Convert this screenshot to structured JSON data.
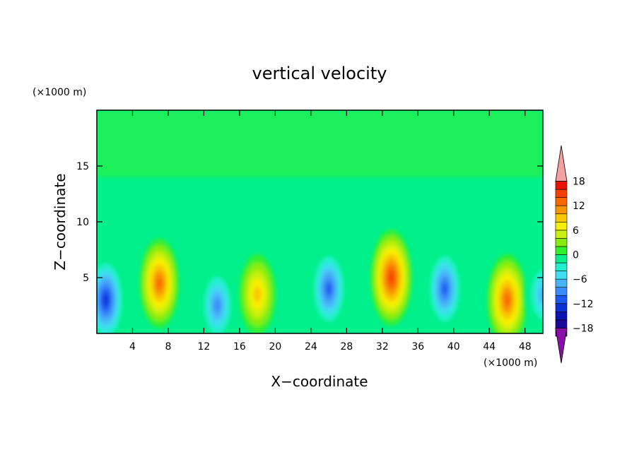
{
  "chart_data": {
    "type": "heatmap",
    "title": "vertical velocity",
    "xlabel": "X−coordinate",
    "ylabel": "Z−coordinate",
    "x_unit": "(×1000 m)",
    "y_unit": "(×1000 m)",
    "xlim": [
      0,
      50
    ],
    "ylim": [
      0,
      20
    ],
    "x_ticks": [
      4,
      8,
      12,
      16,
      20,
      24,
      28,
      32,
      36,
      40,
      44,
      48
    ],
    "y_ticks": [
      5,
      10,
      15
    ],
    "colorbar": {
      "levels": [
        -20,
        -18,
        -16,
        -14,
        -12,
        -10,
        -8,
        -6,
        -4,
        -2,
        0,
        2,
        4,
        6,
        8,
        10,
        12,
        14,
        16,
        18,
        20
      ],
      "tick_labels": [
        "18",
        "12",
        "6",
        "0",
        "−6",
        "−12",
        "−18"
      ],
      "tick_values": [
        18,
        12,
        6,
        0,
        -6,
        -12,
        -18
      ],
      "colors": [
        "#8a0fa8",
        "#4a0aa0",
        "#1a0a9a",
        "#0a14b0",
        "#0a30d8",
        "#1a58f0",
        "#3a8cf8",
        "#46b4f8",
        "#40dcf0",
        "#20f0d0",
        "#00f08c",
        "#30f030",
        "#88ec10",
        "#c8f010",
        "#f8f000",
        "#f8c800",
        "#f89400",
        "#f86800",
        "#f84000",
        "#e81400",
        "#f4a0a0"
      ],
      "extend": "both"
    },
    "cells": [
      {
        "x": 1.0,
        "z": 3.0,
        "w": -15
      },
      {
        "x": 7.0,
        "z": 4.5,
        "w": 12
      },
      {
        "x": 13.5,
        "z": 2.5,
        "w": -10
      },
      {
        "x": 18.0,
        "z": 3.5,
        "w": 8
      },
      {
        "x": 26.0,
        "z": 4.0,
        "w": -12
      },
      {
        "x": 33.0,
        "z": 5.0,
        "w": 15
      },
      {
        "x": 39.0,
        "z": 4.0,
        "w": -12
      },
      {
        "x": 46.0,
        "z": 3.0,
        "w": 13
      },
      {
        "x": 50.0,
        "z": 3.5,
        "w": -8
      }
    ]
  }
}
